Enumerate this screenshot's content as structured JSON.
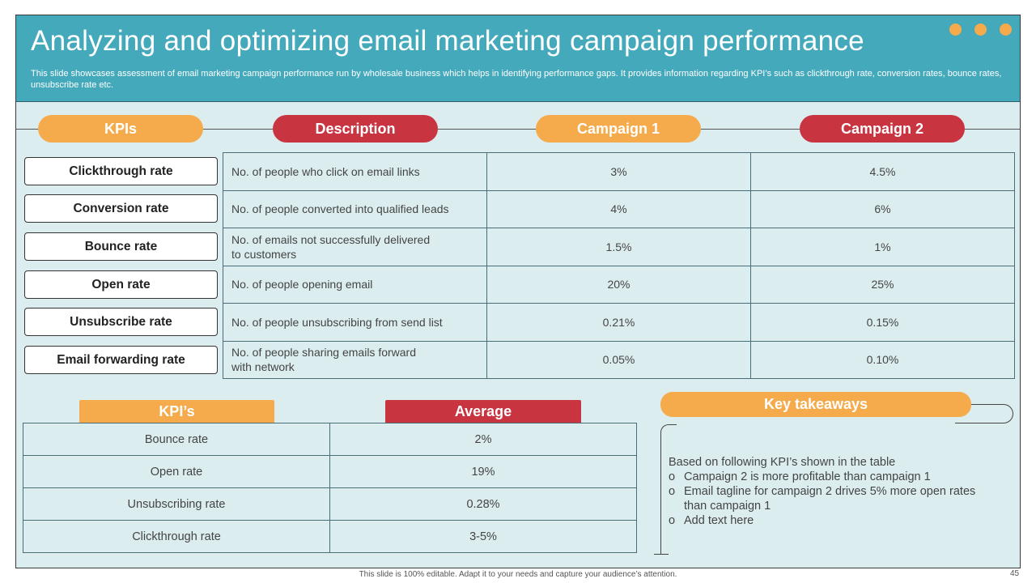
{
  "header": {
    "title": "Analyzing and optimizing email marketing campaign performance",
    "subtitle": "This slide showcases assessment of email marketing campaign performance run by wholesale business which helps in identifying performance gaps. It provides information regarding KPI’s such as clickthrough rate, conversion rates, bounce rates, unsubscribe rate etc."
  },
  "colors": {
    "teal": "#44a9bb",
    "orange": "#f5ab4b",
    "red": "#c93441",
    "panel": "#dcedf0"
  },
  "kpi_table": {
    "headers": {
      "kpis": "KPIs",
      "description": "Description",
      "campaign1": "Campaign 1",
      "campaign2": "Campaign 2"
    },
    "rows": [
      {
        "kpi": "Clickthrough rate",
        "description": "No. of people who click on email links",
        "c1": "3%",
        "c2": "4.5%"
      },
      {
        "kpi": "Conversion rate",
        "description": "No. of people converted into qualified leads",
        "c1": "4%",
        "c2": "6%"
      },
      {
        "kpi": "Bounce rate",
        "description_l1": "No. of emails not successfully delivered",
        "description_l2": "to customers",
        "c1": "1.5%",
        "c2": "1%"
      },
      {
        "kpi": "Open rate",
        "description": "No. of people opening email",
        "c1": "20%",
        "c2": "25%"
      },
      {
        "kpi": "Unsubscribe rate",
        "description": "No. of people unsubscribing from send list",
        "c1": "0.21%",
        "c2": "0.15%"
      },
      {
        "kpi": "Email forwarding rate",
        "description_l1": "No. of people sharing emails forward",
        "description_l2": "with network",
        "c1": "0.05%",
        "c2": "0.10%"
      }
    ]
  },
  "average_table": {
    "headers": {
      "kpis": "KPI’s",
      "average": "Average"
    },
    "rows": [
      {
        "kpi": "Bounce rate",
        "average": "2%"
      },
      {
        "kpi": "Open rate",
        "average": "19%"
      },
      {
        "kpi": "Unsubscribing rate",
        "average": "0.28%"
      },
      {
        "kpi": "Clickthrough rate",
        "average": "3-5%"
      }
    ]
  },
  "takeaways": {
    "title": "Key takeaways",
    "intro": "Based on following KPI’s shown in the table",
    "bullet_marker": "o",
    "bullets": [
      "Campaign 2 is more profitable than campaign 1",
      "Email tagline for campaign 2 drives 5% more open rates than campaign 1",
      "Add text here"
    ]
  },
  "footer": {
    "note": "This slide is 100% editable. Adapt it to your needs and capture your audience’s attention.",
    "page": "45"
  }
}
